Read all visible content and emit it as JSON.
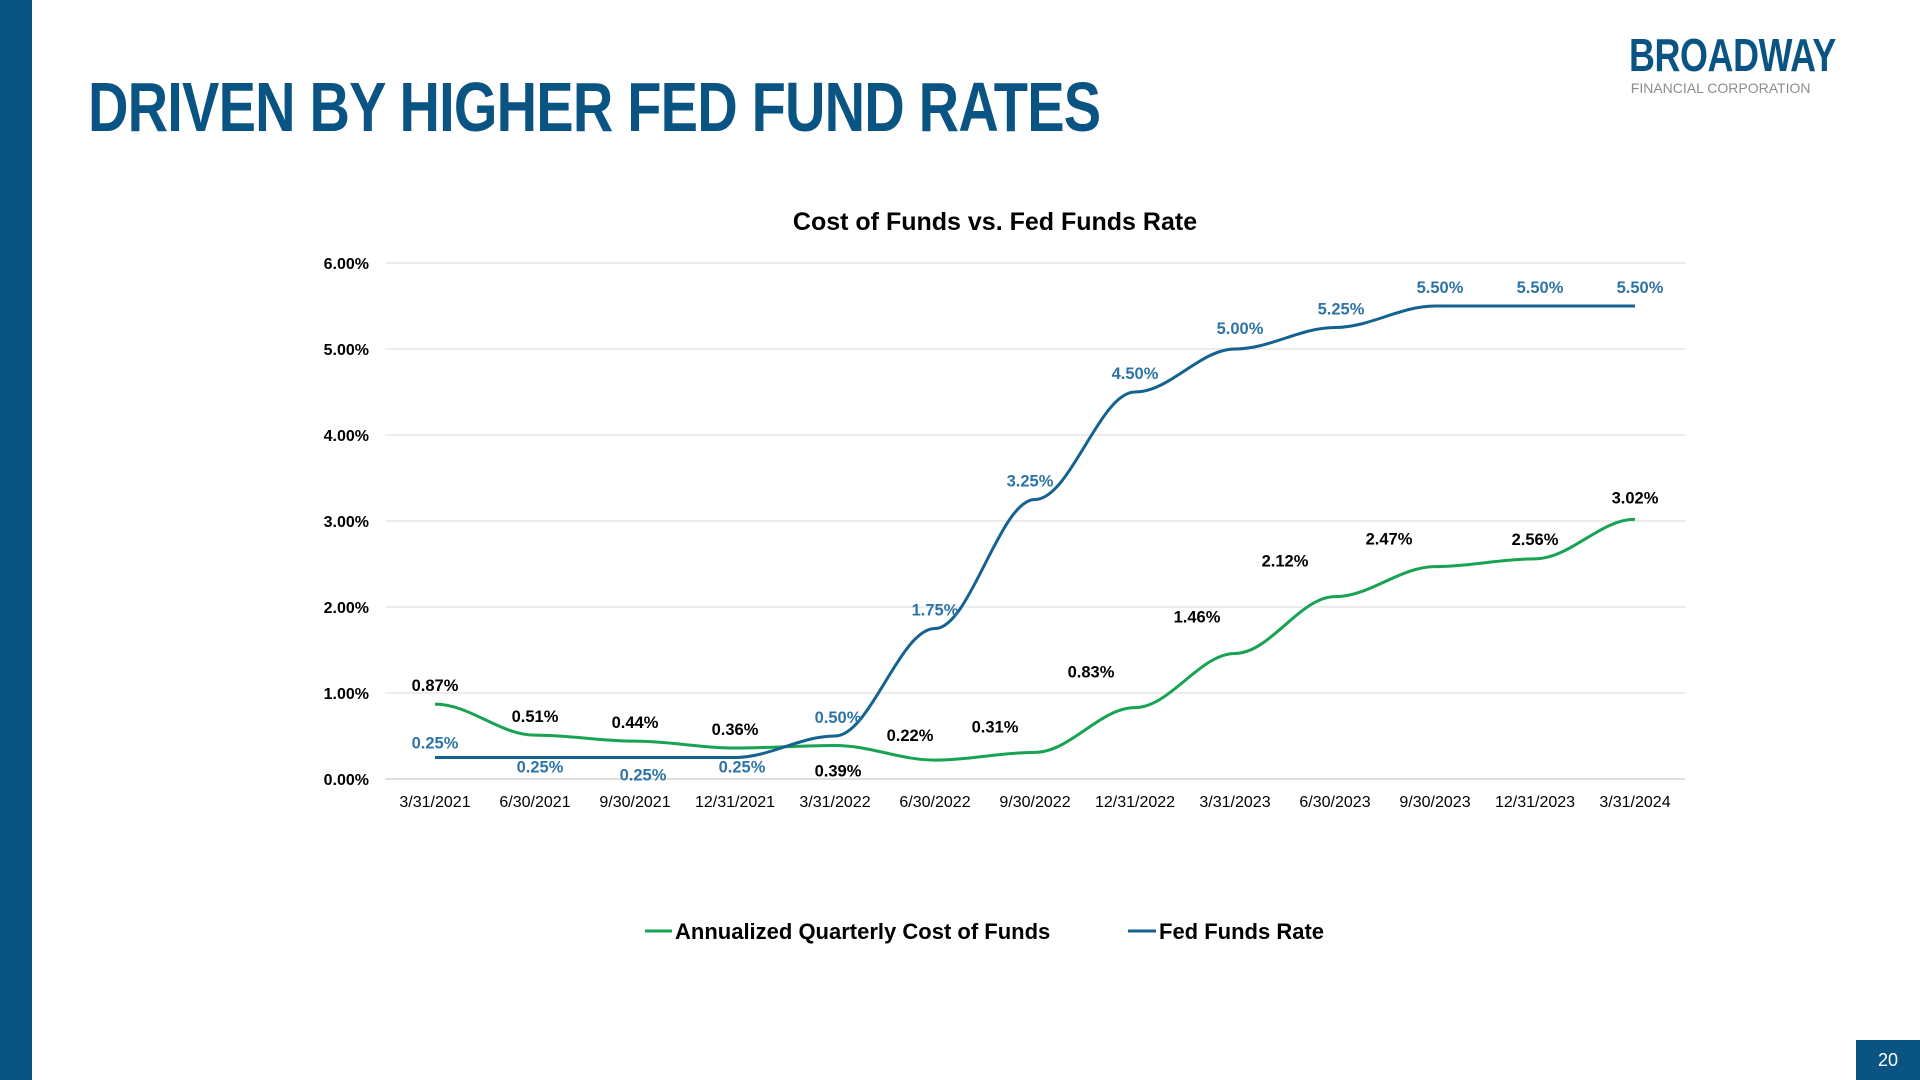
{
  "slide": {
    "title": "DRIVEN BY HIGHER FED FUND RATES",
    "logo_main": "BROADWAY",
    "logo_sub": "FINANCIAL CORPORATION",
    "page_number": "20"
  },
  "colors": {
    "brand": "#0a5483",
    "cost_of_funds": "#17a351",
    "fed_funds": "#14628f",
    "fed_label": "#2e74a6",
    "gridline": "#d9d9d9"
  },
  "chart_data": {
    "type": "line",
    "title": "Cost of Funds vs. Fed Funds Rate",
    "xlabel": "",
    "ylabel": "",
    "categories": [
      "3/31/2021",
      "6/30/2021",
      "9/30/2021",
      "12/31/2021",
      "3/31/2022",
      "6/30/2022",
      "9/30/2022",
      "12/31/2022",
      "3/31/2023",
      "6/30/2023",
      "9/30/2023",
      "12/31/2023",
      "3/31/2024"
    ],
    "ylim": [
      0,
      6
    ],
    "yticks": [
      "0.00%",
      "1.00%",
      "2.00%",
      "3.00%",
      "4.00%",
      "5.00%",
      "6.00%"
    ],
    "grid": true,
    "legend_position": "bottom",
    "series": [
      {
        "name": "Annualized Quarterly Cost of Funds",
        "values": [
          0.87,
          0.51,
          0.44,
          0.36,
          0.39,
          0.22,
          0.31,
          0.83,
          1.46,
          2.12,
          2.47,
          2.56,
          3.02
        ],
        "labels": [
          "0.87%",
          "0.51%",
          "0.44%",
          "0.36%",
          "0.39%",
          "0.22%",
          "0.31%",
          "0.83%",
          "1.46%",
          "2.12%",
          "2.47%",
          "2.56%",
          "3.02%"
        ]
      },
      {
        "name": "Fed Funds Rate",
        "values": [
          0.25,
          0.25,
          0.25,
          0.25,
          0.5,
          1.75,
          3.25,
          4.5,
          5.0,
          5.25,
          5.5,
          5.5,
          5.5
        ],
        "labels": [
          "0.25%",
          "0.25%",
          "0.25%",
          "0.25%",
          "0.50%",
          "1.75%",
          "3.25%",
          "4.50%",
          "5.00%",
          "5.25%",
          "5.50%",
          "5.50%",
          "5.50%"
        ]
      }
    ]
  }
}
